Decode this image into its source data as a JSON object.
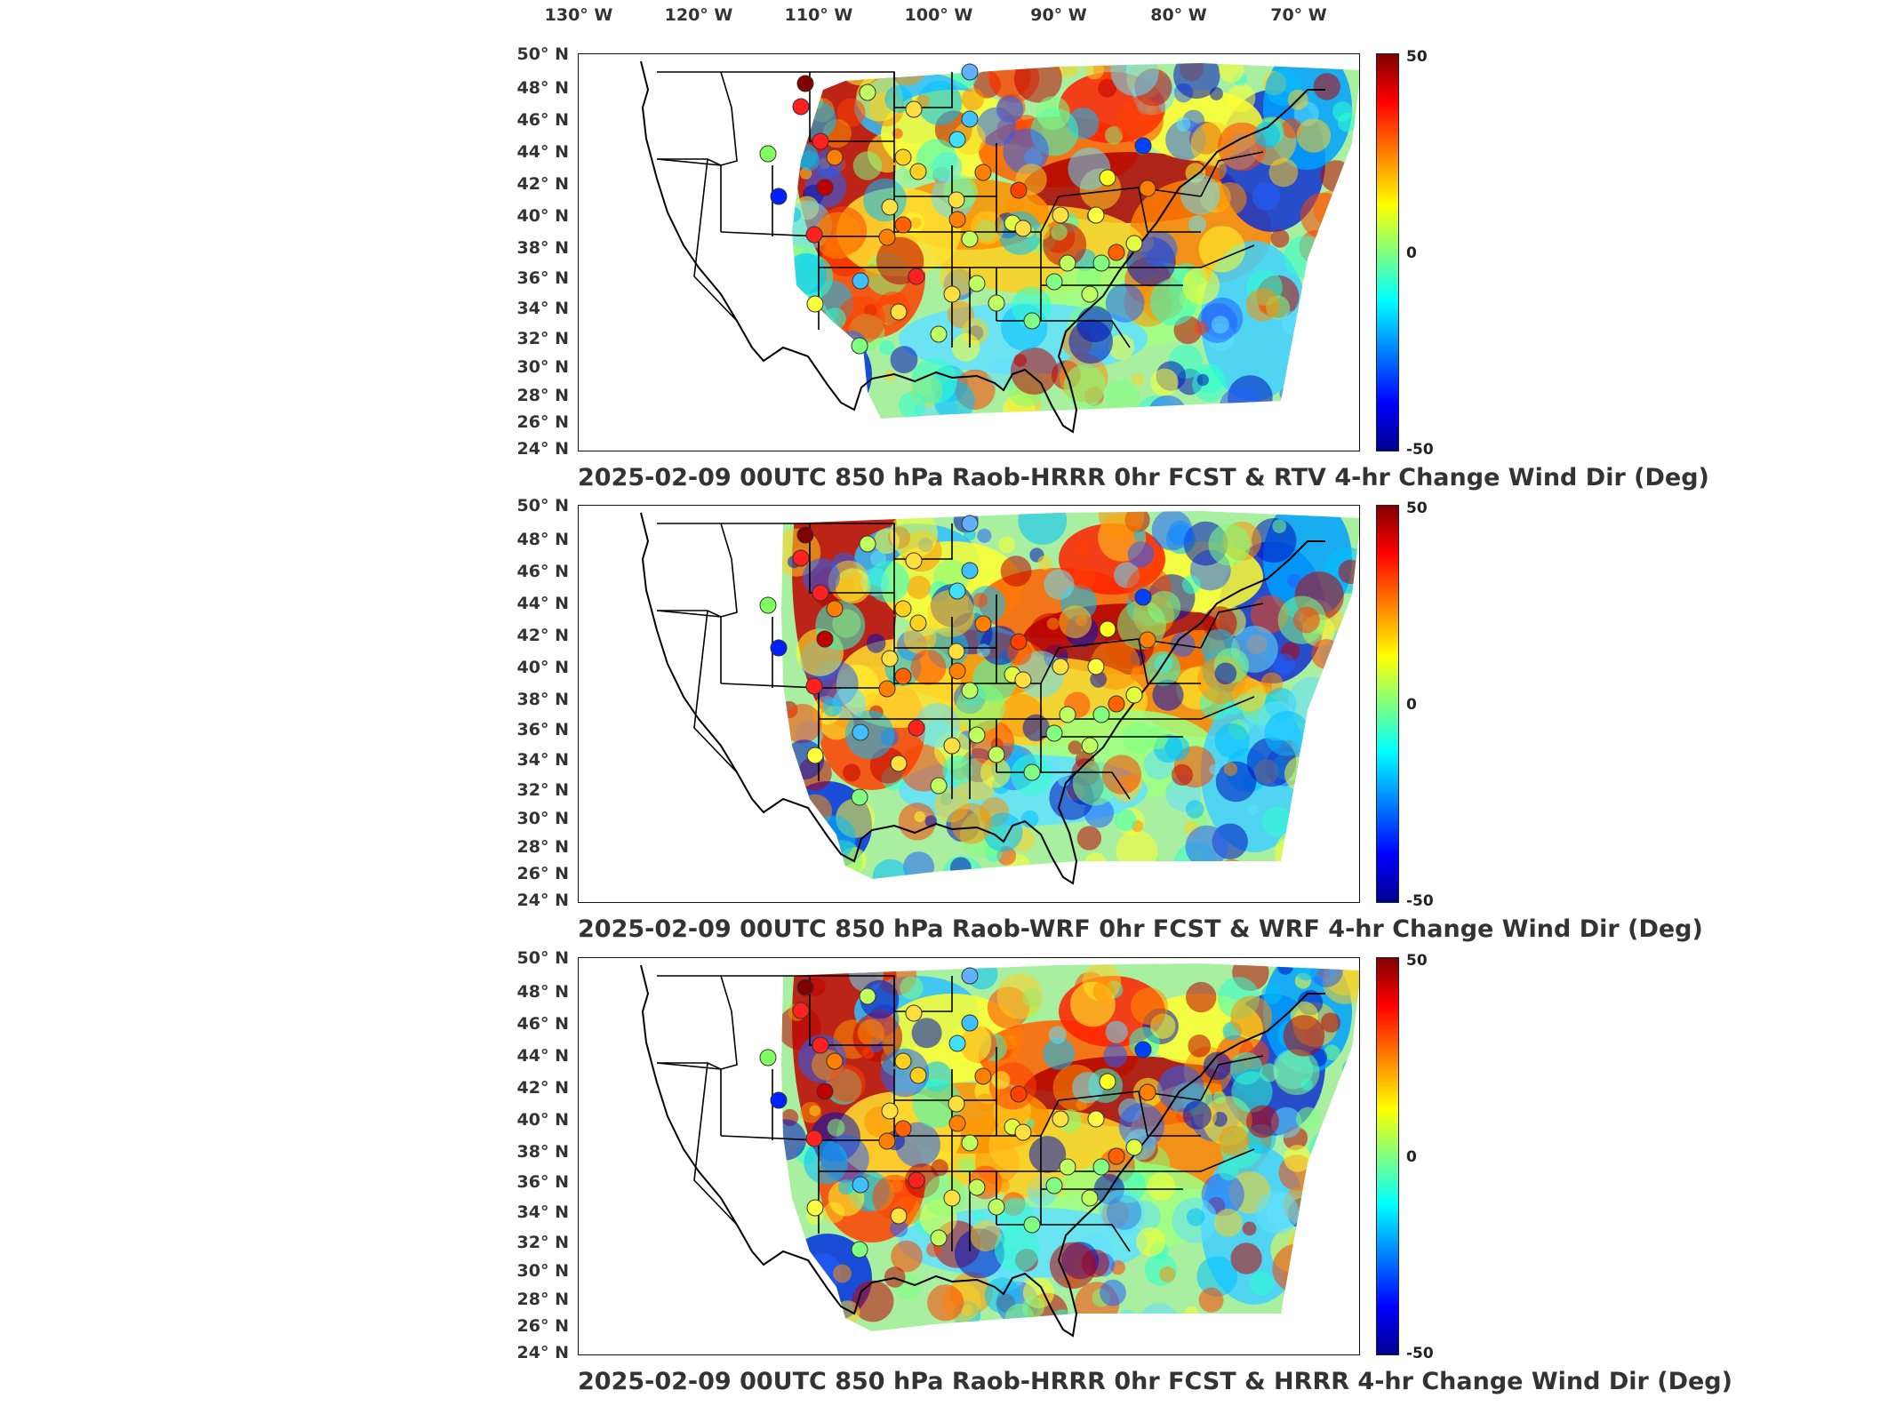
{
  "longitude_labels": [
    "130° W",
    "120° W",
    "110° W",
    "100° W",
    "90° W",
    "80° W",
    "70° W"
  ],
  "latitude_labels": [
    "50° N",
    "48° N",
    "46° N",
    "44° N",
    "42° N",
    "40° N",
    "38° N",
    "36° N",
    "34° N",
    "32° N",
    "30° N",
    "28° N",
    "26° N",
    "24° N"
  ],
  "colorbar": {
    "max": "50",
    "mid": "0",
    "min": "-50"
  },
  "colors": {
    "high": "#800000",
    "red": "#ff0000",
    "orange": "#ff8000",
    "yellow": "#ffff00",
    "green": "#80ff80",
    "cyan": "#00ffff",
    "blue": "#0000ff",
    "low": "#000090"
  },
  "panels": [
    {
      "title": "2025-02-09 00UTC 850 hPa Raob-HRRR 0hr FCST & RTV 4-hr Change Wind Dir (Deg)"
    },
    {
      "title": "2025-02-09 00UTC 850 hPa Raob-WRF 0hr FCST & WRF 4-hr Change Wind Dir (Deg)"
    },
    {
      "title": "2025-02-09 00UTC 850 hPa Raob-HRRR 0hr FCST & HRRR 4-hr Change Wind Dir (Deg)"
    }
  ]
}
